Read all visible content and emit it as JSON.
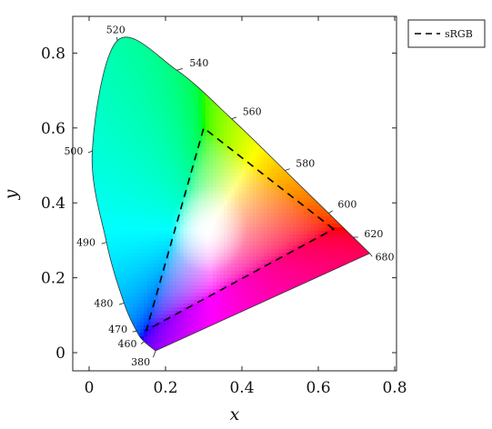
{
  "chart_data": {
    "type": "scatter",
    "title": "",
    "xlabel": "x",
    "ylabel": "y",
    "xlim": [
      -0.05,
      0.8
    ],
    "ylim": [
      -0.05,
      0.88
    ],
    "x_ticks": [
      "0",
      "0.2",
      "0.4",
      "0.6",
      "0.8"
    ],
    "x_tick_values": [
      0,
      0.2,
      0.4,
      0.6,
      0.8
    ],
    "y_ticks": [
      "0",
      "0.2",
      "0.4",
      "0.6",
      "0.8"
    ],
    "y_tick_values": [
      0,
      0.2,
      0.4,
      0.6,
      0.8
    ],
    "grid": false,
    "legend_position": "outside top-right",
    "locus": [
      {
        "label": "380",
        "x": 0.1741,
        "y": 0.005
      },
      {
        "label": "460",
        "x": 0.144,
        "y": 0.0297
      },
      {
        "label": "470",
        "x": 0.1241,
        "y": 0.0578
      },
      {
        "label": "480",
        "x": 0.0913,
        "y": 0.1327
      },
      {
        "label": "490",
        "x": 0.0454,
        "y": 0.295
      },
      {
        "label": "500",
        "x": 0.0082,
        "y": 0.5384
      },
      {
        "label": "520",
        "x": 0.0743,
        "y": 0.8338
      },
      {
        "label": "540",
        "x": 0.2296,
        "y": 0.7543
      },
      {
        "label": "560",
        "x": 0.3731,
        "y": 0.6245
      },
      {
        "label": "580",
        "x": 0.5125,
        "y": 0.4866
      },
      {
        "label": "600",
        "x": 0.627,
        "y": 0.3725
      },
      {
        "label": "620",
        "x": 0.6915,
        "y": 0.3083
      },
      {
        "label": "680",
        "x": 0.7347,
        "y": 0.2653
      }
    ],
    "series": [
      {
        "name": "sRGB",
        "style": "dashed",
        "color": "#000000",
        "points": [
          {
            "x": 0.64,
            "y": 0.33
          },
          {
            "x": 0.3,
            "y": 0.6
          },
          {
            "x": 0.15,
            "y": 0.06
          }
        ]
      }
    ]
  },
  "legend": {
    "label": "sRGB"
  }
}
